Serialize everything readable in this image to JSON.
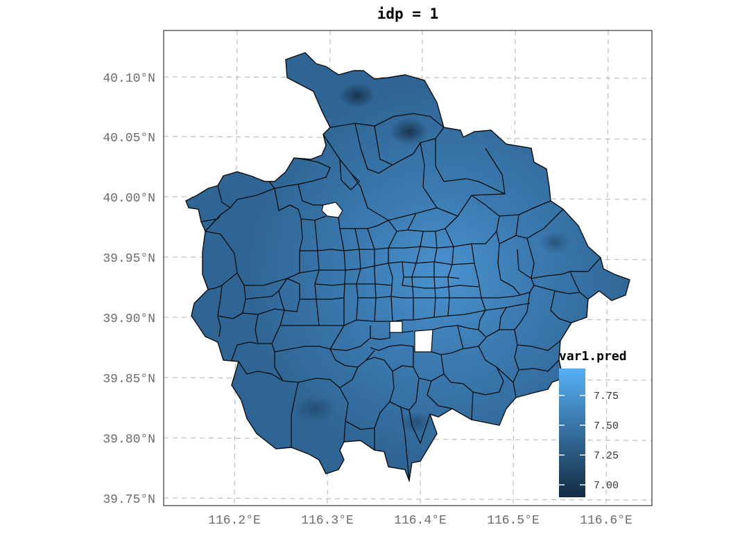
{
  "title": "idp = 1",
  "map": {
    "lon_labels": [
      "116.2°E",
      "116.3°E",
      "116.4°E",
      "116.5°E",
      "116.6°E"
    ],
    "lat_labels": [
      "40.10°N",
      "40.05°N",
      "40.00°N",
      "39.95°N",
      "39.90°N",
      "39.85°N",
      "39.80°N",
      "39.75°N"
    ],
    "grid": true,
    "fill_colors": {
      "dark": "#173450",
      "base": "#2e6391",
      "mid": "#3a78ad",
      "light": "#4d97d3",
      "brightest": "#56b1f7",
      "boundary": "#000000",
      "hole": "#ffffff"
    }
  },
  "legend": {
    "title": "var1.pred",
    "position": "bottom-right, inside",
    "ticks": [
      "7.75",
      "7.50",
      "7.25",
      "7.00"
    ],
    "low_color": "#132b43",
    "high_color": "#56b1f7"
  }
}
